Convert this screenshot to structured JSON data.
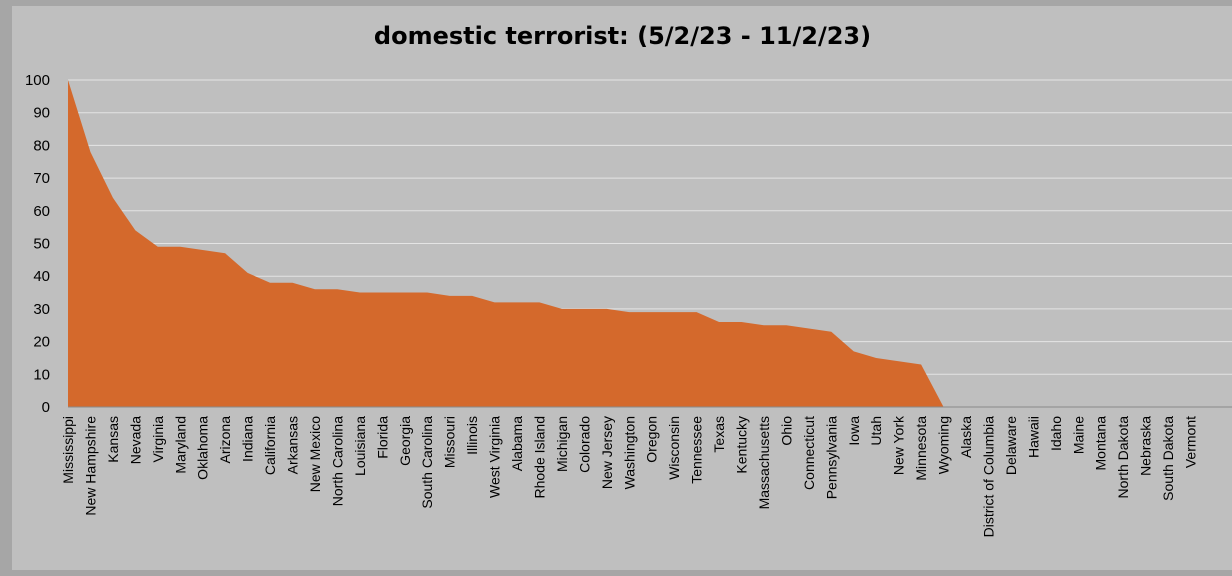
{
  "chart_data": {
    "type": "area",
    "title": "domestic terrorist: (5/2/23 - 11/2/23)",
    "xlabel": "",
    "ylabel": "",
    "ylim": [
      0,
      100
    ],
    "yticks": [
      0,
      10,
      20,
      30,
      40,
      50,
      60,
      70,
      80,
      90,
      100
    ],
    "grid": true,
    "fill_color": "#d4692c",
    "categories": [
      "Mississippi",
      "New Hampshire",
      "Kansas",
      "Nevada",
      "Virginia",
      "Maryland",
      "Oklahoma",
      "Arizona",
      "Indiana",
      "California",
      "Arkansas",
      "New Mexico",
      "North Carolina",
      "Louisiana",
      "Florida",
      "Georgia",
      "South Carolina",
      "Missouri",
      "Illinois",
      "West Virginia",
      "Alabama",
      "Rhode Island",
      "Michigan",
      "Colorado",
      "New Jersey",
      "Washington",
      "Oregon",
      "Wisconsin",
      "Tennessee",
      "Texas",
      "Kentucky",
      "Massachusetts",
      "Ohio",
      "Connecticut",
      "Pennsylvania",
      "Iowa",
      "Utah",
      "New York",
      "Minnesota",
      "Wyoming",
      "Alaska",
      "District of Columbia",
      "Delaware",
      "Hawaii",
      "Idaho",
      "Maine",
      "Montana",
      "North Dakota",
      "Nebraska",
      "South Dakota",
      "Vermont"
    ],
    "values": [
      100,
      78,
      64,
      54,
      49,
      49,
      48,
      47,
      41,
      38,
      38,
      36,
      36,
      35,
      35,
      35,
      35,
      34,
      34,
      32,
      32,
      32,
      30,
      30,
      30,
      29,
      29,
      29,
      29,
      26,
      26,
      25,
      25,
      24,
      23,
      17,
      15,
      14,
      13,
      0,
      null,
      null,
      null,
      null,
      null,
      null,
      null,
      null,
      null,
      null,
      null
    ]
  }
}
